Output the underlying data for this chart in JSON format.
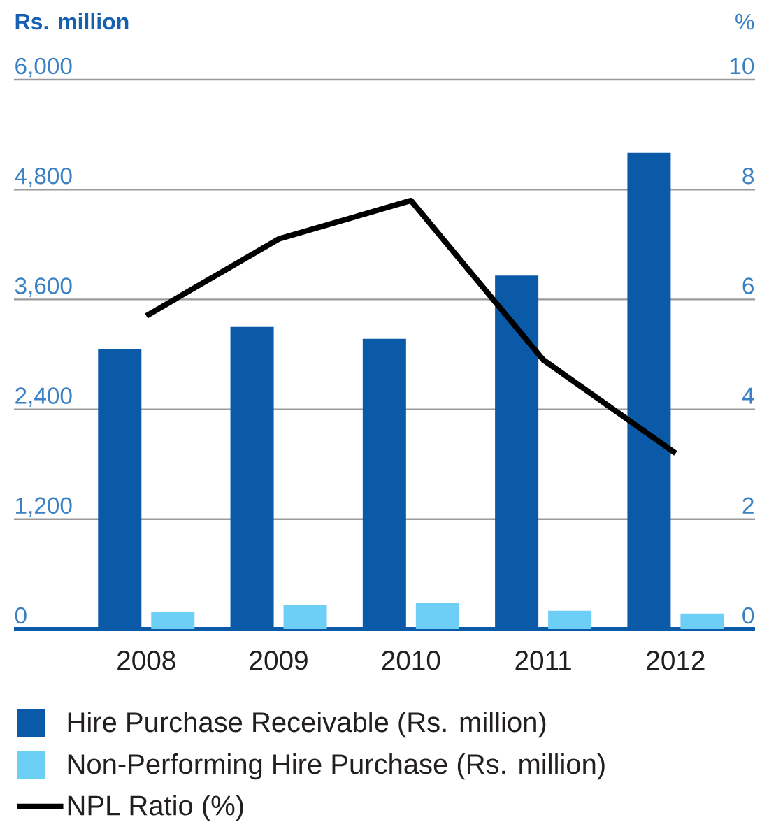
{
  "chart_data": {
    "type": "bar",
    "ylabel": "Rs. million",
    "y2label": "%",
    "categories": [
      "2008",
      "2009",
      "2010",
      "2011",
      "2012"
    ],
    "series": [
      {
        "name": "Hire Purchase Receivable (Rs. million)",
        "color": "#0b5aa8",
        "values": [
          3060,
          3300,
          3170,
          3860,
          5200
        ]
      },
      {
        "name": "Non-Performing Hire Purchase (Rs. million)",
        "color": "#6dcff6",
        "values": [
          190,
          260,
          290,
          200,
          170
        ]
      },
      {
        "name": "NPL Ratio (%)",
        "type": "line",
        "axis": "y2",
        "color": "#000000",
        "values": [
          5.7,
          7.1,
          7.8,
          4.9,
          3.2
        ]
      }
    ],
    "ylim": [
      0,
      6000
    ],
    "yticks": [
      0,
      {
        "value": 1200,
        "label": "1,200"
      },
      {
        "value": 2400,
        "label": "2,400"
      },
      {
        "value": 3600,
        "label": "3,600"
      },
      {
        "value": 4800,
        "label": "4,800"
      },
      {
        "value": 6000,
        "label": "6,000"
      }
    ],
    "y2lim": [
      0,
      10
    ],
    "y2ticks": [
      0,
      2,
      4,
      6,
      8,
      10
    ],
    "grid": "y",
    "legend": "bottom",
    "marker": "none"
  }
}
